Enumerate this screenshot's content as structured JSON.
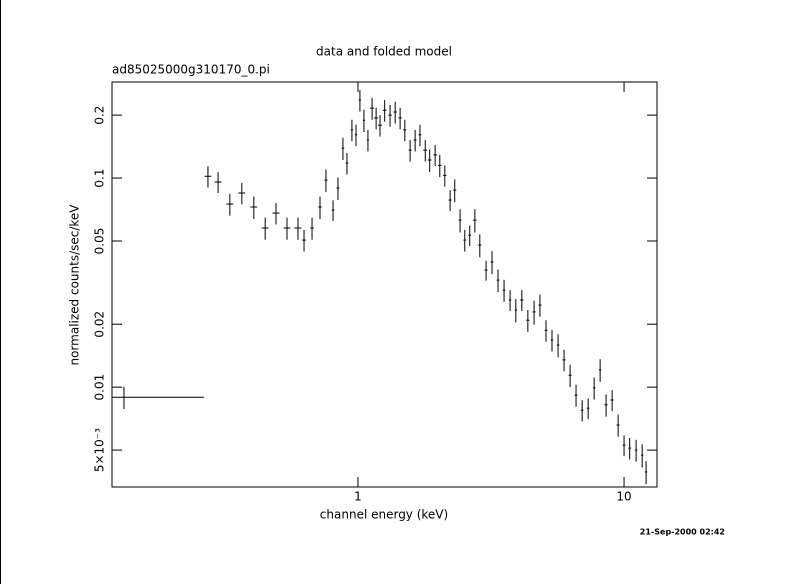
{
  "chart_data": {
    "type": "errorbar",
    "title": "data and folded model",
    "subtitle": "ad85025000g310170_0.pi",
    "x_label": "channel energy (keV)",
    "y_label": "normalized counts/sec/keV",
    "timestamp": "21-Sep-2000 02:42",
    "x_log": true,
    "y_log": true,
    "color": "#000000",
    "xlim": [
      0.119,
      13.3
    ],
    "ylim": [
      0.00333,
      0.288
    ],
    "xticks": [
      1,
      10
    ],
    "yticks": [
      {
        "value": 0.005,
        "label": "5×10⁻³"
      },
      0.01,
      0.02,
      0.05,
      0.1,
      0.2
    ],
    "x": [
      0.132,
      0.273,
      0.298,
      0.33,
      0.366,
      0.406,
      0.448,
      0.492,
      0.541,
      0.595,
      0.627,
      0.672,
      0.72,
      0.758,
      0.806,
      0.841,
      0.878,
      0.909,
      0.949,
      0.983,
      1.017,
      1.053,
      1.09,
      1.13,
      1.17,
      1.21,
      1.26,
      1.32,
      1.38,
      1.44,
      1.5,
      1.57,
      1.64,
      1.71,
      1.79,
      1.86,
      1.95,
      2.03,
      2.12,
      2.22,
      2.31,
      2.42,
      2.52,
      2.63,
      2.75,
      2.87,
      3.03,
      3.19,
      3.36,
      3.54,
      3.73,
      3.92,
      4.13,
      4.35,
      4.59,
      4.83,
      5.09,
      5.36,
      5.65,
      5.95,
      6.27,
      6.6,
      6.96,
      7.33,
      7.72,
      8.13,
      8.56,
      9.02,
      9.5,
      10,
      10.5,
      11.1,
      11.7,
      12.1
    ],
    "xerr": [
      0.132,
      0.008,
      0.009,
      0.01,
      0.011,
      0.012,
      0.013,
      0.015,
      0.016,
      0.018,
      0.01,
      0.01,
      0.01,
      0.01,
      0.01,
      0.01,
      0.01,
      0.01,
      0.01,
      0.01,
      0.01,
      0.01,
      0.01,
      0.02,
      0.02,
      0.02,
      0.02,
      0.02,
      0.02,
      0.02,
      0.02,
      0.02,
      0.02,
      0.02,
      0.03,
      0.03,
      0.03,
      0.03,
      0.03,
      0.03,
      0.03,
      0.03,
      0.03,
      0.03,
      0.04,
      0.04,
      0.04,
      0.04,
      0.04,
      0.04,
      0.04,
      0.04,
      0.06,
      0.06,
      0.06,
      0.06,
      0.06,
      0.06,
      0.06,
      0.08,
      0.08,
      0.08,
      0.08,
      0.08,
      0.08,
      0.08,
      0.12,
      0.12,
      0.12,
      0.12,
      0.12,
      0.12,
      0.12,
      0.12
    ],
    "values": [
      0.00895,
      0.102,
      0.0957,
      0.0751,
      0.0848,
      0.0727,
      0.0577,
      0.068,
      0.0577,
      0.0577,
      0.0505,
      0.0577,
      0.0727,
      0.0978,
      0.0703,
      0.0896,
      0.139,
      0.118,
      0.17,
      0.161,
      0.236,
      0.189,
      0.152,
      0.216,
      0.194,
      0.179,
      0.211,
      0.2,
      0.207,
      0.194,
      0.17,
      0.136,
      0.152,
      0.161,
      0.136,
      0.122,
      0.129,
      0.115,
      0.103,
      0.0785,
      0.0876,
      0.0629,
      0.0505,
      0.0533,
      0.0629,
      0.0478,
      0.0363,
      0.0397,
      0.0325,
      0.0291,
      0.0261,
      0.0234,
      0.0261,
      0.0209,
      0.0229,
      0.0247,
      0.0187,
      0.0168,
      0.0159,
      0.0135,
      0.0114,
      0.00916,
      0.00776,
      0.00793,
      0.00992,
      0.0121,
      0.00823,
      0.00868,
      0.00659,
      0.00528,
      0.00511,
      0.005,
      0.00473,
      0.00393
    ],
    "yerr": [
      0.0011,
      0.012,
      0.011,
      0.009,
      0.01,
      0.009,
      0.007,
      0.008,
      0.007,
      0.007,
      0.006,
      0.007,
      0.009,
      0.012,
      0.008,
      0.011,
      0.017,
      0.014,
      0.02,
      0.019,
      0.028,
      0.023,
      0.018,
      0.026,
      0.023,
      0.021,
      0.025,
      0.024,
      0.025,
      0.023,
      0.02,
      0.016,
      0.018,
      0.019,
      0.016,
      0.015,
      0.015,
      0.014,
      0.012,
      0.009,
      0.011,
      0.008,
      0.006,
      0.006,
      0.008,
      0.006,
      0.004,
      0.005,
      0.004,
      0.0035,
      0.003,
      0.003,
      0.003,
      0.0025,
      0.003,
      0.003,
      0.0022,
      0.002,
      0.002,
      0.0016,
      0.0014,
      0.0011,
      0.0009,
      0.0009,
      0.0012,
      0.0015,
      0.001,
      0.001,
      0.0008,
      0.0006,
      0.0006,
      0.0006,
      0.0006,
      0.0005
    ]
  }
}
